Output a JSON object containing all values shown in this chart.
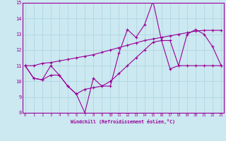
{
  "x": [
    0,
    1,
    2,
    3,
    4,
    5,
    6,
    7,
    8,
    9,
    10,
    11,
    12,
    13,
    14,
    15,
    16,
    17,
    18,
    19,
    20,
    21,
    22,
    23
  ],
  "line1": [
    11.0,
    10.2,
    10.1,
    10.4,
    10.4,
    9.7,
    9.2,
    8.0,
    10.2,
    9.7,
    9.7,
    11.8,
    13.3,
    12.8,
    13.6,
    15.1,
    12.6,
    12.6,
    11.0,
    13.0,
    13.3,
    13.0,
    12.2,
    11.0
  ],
  "line2": [
    11.0,
    10.2,
    10.1,
    11.0,
    10.4,
    9.7,
    9.2,
    9.5,
    9.6,
    9.7,
    10.0,
    10.5,
    11.0,
    11.5,
    12.0,
    12.5,
    12.6,
    10.8,
    11.0,
    11.0,
    11.0,
    11.0,
    11.0,
    11.0
  ],
  "line3": [
    11.0,
    11.0,
    11.15,
    11.2,
    11.3,
    11.4,
    11.5,
    11.6,
    11.7,
    11.85,
    12.0,
    12.15,
    12.3,
    12.45,
    12.6,
    12.7,
    12.8,
    12.9,
    13.0,
    13.1,
    13.2,
    13.25,
    13.25,
    13.25
  ],
  "ylim_min": 8,
  "ylim_max": 15,
  "xlim_min": 0,
  "xlim_max": 23,
  "xlabel": "Windchill (Refroidissement éolien,°C)",
  "bg_color": "#cce8f0",
  "grid_color": "#aad4e0",
  "line_color": "#990099"
}
